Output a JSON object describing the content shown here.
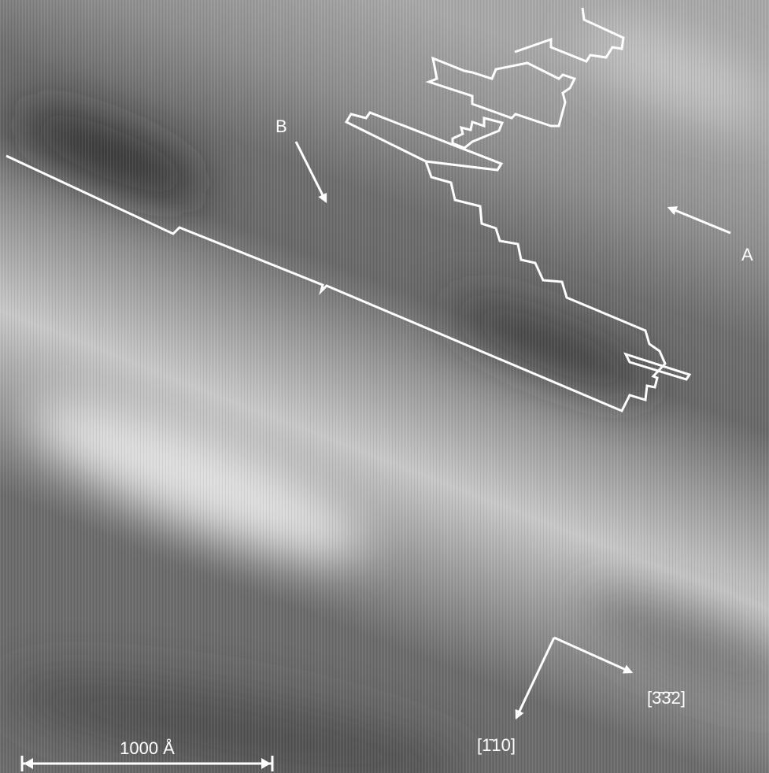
{
  "labels": {
    "b": "B",
    "a": "A"
  },
  "scale_bar": "1000 Å",
  "directions": {
    "first": "[1̄10]",
    "second": "[3̄3̄2]"
  }
}
